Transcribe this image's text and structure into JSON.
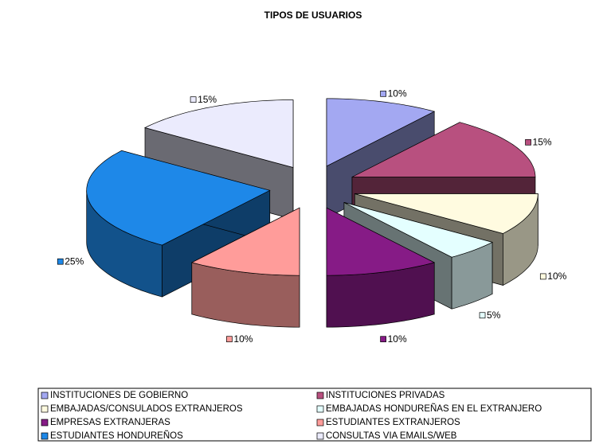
{
  "chart_data": {
    "type": "pie",
    "title": "TIPOS DE USUARIOS",
    "categories": [
      "INSTITUCIONES DE GOBIERNO",
      "INSTITUCIONES PRIVADAS",
      "EMBAJADAS/CONSULADOS EXTRANJEROS",
      "EMBAJADAS HONDUREÑAS EN EL EXTRANJERO",
      "EMPRESAS EXTRANJERAS",
      "ESTUDIANTES EXTRANJEROS",
      "ESTUDIANTES HONDUREÑOS",
      "CONSULTAS VIA EMAILS/WEB"
    ],
    "values": [
      10,
      15,
      10,
      5,
      10,
      10,
      25,
      15
    ],
    "value_labels": [
      "10%",
      "15%",
      "10%",
      "5%",
      "10%",
      "10%",
      "25%",
      "15%"
    ],
    "colors": [
      "#a3a8f2",
      "#b8507f",
      "#fffbe0",
      "#e4ffff",
      "#861b86",
      "#ff9c9a",
      "#1e88e8",
      "#ebebfd"
    ],
    "legend": "bottom"
  }
}
